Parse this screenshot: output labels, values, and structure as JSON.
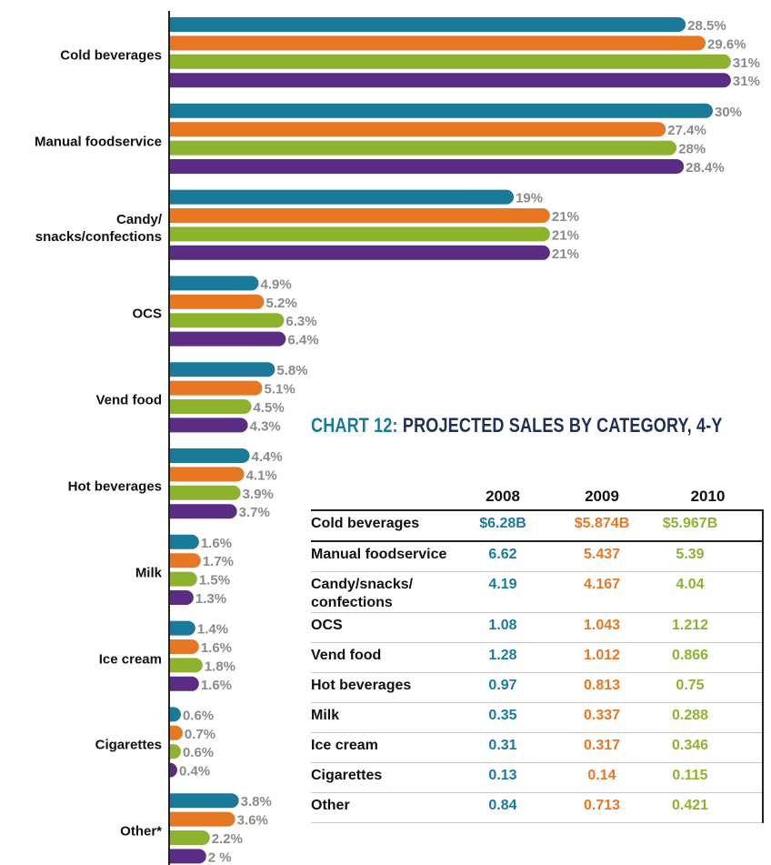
{
  "chart_data": {
    "type": "bar",
    "orientation": "horizontal",
    "categories": [
      "Cold beverages",
      "Manual foodservice",
      "Candy/\nsnacks/confections",
      "OCS",
      "Vend food",
      "Hot beverages",
      "Milk",
      "Ice cream",
      "Cigarettes",
      "Other*"
    ],
    "series": [
      {
        "color": "#1a7a9a",
        "values": [
          28.5,
          30,
          19,
          4.9,
          5.8,
          4.4,
          1.6,
          1.4,
          0.6,
          3.8
        ],
        "value_labels": [
          "28.5%",
          "30%",
          "19%",
          "4.9%",
          "5.8%",
          "4.4%",
          "1.6%",
          "1.4%",
          "0.6%",
          "3.8%"
        ]
      },
      {
        "color": "#e87722",
        "values": [
          29.6,
          27.4,
          21,
          5.2,
          5.1,
          4.1,
          1.7,
          1.6,
          0.7,
          3.6
        ],
        "value_labels": [
          "29.6%",
          "27.4%",
          "21%",
          "5.2%",
          "5.1%",
          "4.1%",
          "1.7%",
          "1.6%",
          "0.7%",
          "3.6%"
        ]
      },
      {
        "color": "#8db32e",
        "values": [
          31,
          28,
          21,
          6.3,
          4.5,
          3.9,
          1.5,
          1.8,
          0.6,
          2.2
        ],
        "value_labels": [
          "31%",
          "28%",
          "21%",
          "6.3%",
          "4.5%",
          "3.9%",
          "1.5%",
          "1.8%",
          "0.6%",
          "2.2%"
        ]
      },
      {
        "color": "#5b2c83",
        "values": [
          31,
          28.4,
          21,
          6.4,
          4.3,
          3.7,
          1.3,
          1.6,
          0.4,
          2
        ],
        "value_labels": [
          "31%",
          "28.4%",
          "21%",
          "6.4%",
          "4.3%",
          "3.7%",
          "1.3%",
          "1.6%",
          "0.4%",
          "2 %"
        ]
      }
    ]
  },
  "table": {
    "title_number": "CHART 12:",
    "title": "PROJECTED SALES BY CATEGORY, 4-Y",
    "columns": [
      "2008",
      "2009",
      "2010"
    ],
    "rows": [
      [
        "Cold beverages",
        "$6.28B",
        "$5.874B",
        "$5.967B"
      ],
      [
        "Manual foodservice",
        "6.62",
        "5.437",
        "5.39"
      ],
      [
        "Candy/snacks/ confections",
        "4.19",
        "4.167",
        "4.04"
      ],
      [
        "OCS",
        "1.08",
        "1.043",
        "1.212"
      ],
      [
        "Vend food",
        "1.28",
        "1.012",
        "0.866"
      ],
      [
        "Hot beverages",
        "0.97",
        "0.813",
        "0.75"
      ],
      [
        "Milk",
        "0.35",
        "0.337",
        "0.288"
      ],
      [
        "Ice cream",
        "0.31",
        "0.317",
        "0.346"
      ],
      [
        "Cigarettes",
        "0.13",
        "0.14",
        "0.115"
      ],
      [
        "Other",
        "0.84",
        "0.713",
        "0.421"
      ]
    ]
  }
}
